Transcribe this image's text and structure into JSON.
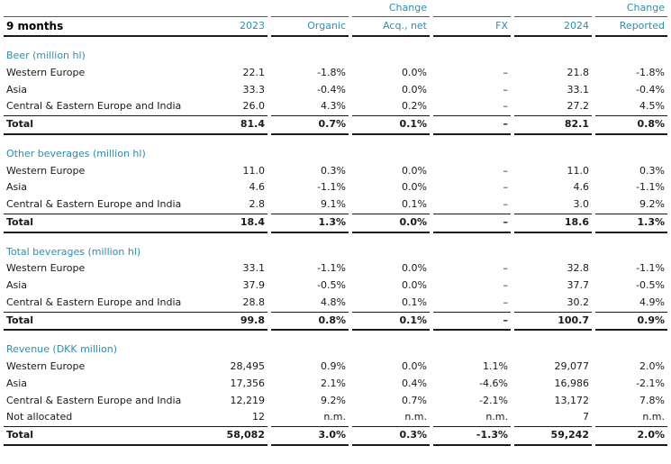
{
  "header": {
    "title": "9 months",
    "change_label": "Change",
    "columns": {
      "y2023": "2023",
      "organic": "Organic",
      "acq": "Acq., net",
      "fx": "FX",
      "y2024": "2024",
      "reported": "Reported"
    }
  },
  "sections": [
    {
      "title": "Beer (million hl)",
      "rows": [
        {
          "label": "Western Europe",
          "y2023": "22.1",
          "organic": "-1.8%",
          "acq": "0.0%",
          "fx": "–",
          "y2024": "21.8",
          "reported": "-1.8%"
        },
        {
          "label": "Asia",
          "y2023": "33.3",
          "organic": "-0.4%",
          "acq": "0.0%",
          "fx": "–",
          "y2024": "33.1",
          "reported": "-0.4%"
        },
        {
          "label": "Central & Eastern Europe and India",
          "y2023": "26.0",
          "organic": "4.3%",
          "acq": "0.2%",
          "fx": "–",
          "y2024": "27.2",
          "reported": "4.5%"
        }
      ],
      "total": {
        "label": "Total",
        "y2023": "81.4",
        "organic": "0.7%",
        "acq": "0.1%",
        "fx": "–",
        "y2024": "82.1",
        "reported": "0.8%"
      }
    },
    {
      "title": "Other beverages (million hl)",
      "rows": [
        {
          "label": "Western Europe",
          "y2023": "11.0",
          "organic": "0.3%",
          "acq": "0.0%",
          "fx": "–",
          "y2024": "11.0",
          "reported": "0.3%"
        },
        {
          "label": "Asia",
          "y2023": "4.6",
          "organic": "-1.1%",
          "acq": "0.0%",
          "fx": "–",
          "y2024": "4.6",
          "reported": "-1.1%"
        },
        {
          "label": "Central & Eastern Europe and India",
          "y2023": "2.8",
          "organic": "9.1%",
          "acq": "0.1%",
          "fx": "–",
          "y2024": "3.0",
          "reported": "9.2%"
        }
      ],
      "total": {
        "label": "Total",
        "y2023": "18.4",
        "organic": "1.3%",
        "acq": "0.0%",
        "fx": "–",
        "y2024": "18.6",
        "reported": "1.3%"
      }
    },
    {
      "title": "Total beverages (million hl)",
      "rows": [
        {
          "label": "Western Europe",
          "y2023": "33.1",
          "organic": "-1.1%",
          "acq": "0.0%",
          "fx": "–",
          "y2024": "32.8",
          "reported": "-1.1%"
        },
        {
          "label": "Asia",
          "y2023": "37.9",
          "organic": "-0.5%",
          "acq": "0.0%",
          "fx": "–",
          "y2024": "37.7",
          "reported": "-0.5%"
        },
        {
          "label": "Central & Eastern Europe and India",
          "y2023": "28.8",
          "organic": "4.8%",
          "acq": "0.1%",
          "fx": "–",
          "y2024": "30.2",
          "reported": "4.9%"
        }
      ],
      "total": {
        "label": "Total",
        "y2023": "99.8",
        "organic": "0.8%",
        "acq": "0.1%",
        "fx": "–",
        "y2024": "100.7",
        "reported": "0.9%"
      }
    },
    {
      "title": "Revenue (DKK million)",
      "rows": [
        {
          "label": "Western Europe",
          "y2023": "28,495",
          "organic": "0.9%",
          "acq": "0.0%",
          "fx": "1.1%",
          "y2024": "29,077",
          "reported": "2.0%"
        },
        {
          "label": "Asia",
          "y2023": "17,356",
          "organic": "2.1%",
          "acq": "0.4%",
          "fx": "-4.6%",
          "y2024": "16,986",
          "reported": "-2.1%"
        },
        {
          "label": "Central & Eastern Europe and India",
          "y2023": "12,219",
          "organic": "9.2%",
          "acq": "0.7%",
          "fx": "-2.1%",
          "y2024": "13,172",
          "reported": "7.8%"
        },
        {
          "label": "Not allocated",
          "y2023": "12",
          "organic": "n.m.",
          "acq": "n.m.",
          "fx": "n.m.",
          "y2024": "7",
          "reported": "n.m."
        }
      ],
      "total": {
        "label": "Total",
        "y2023": "58,082",
        "organic": "3.0%",
        "acq": "0.3%",
        "fx": "-1.3%",
        "y2024": "59,242",
        "reported": "2.0%"
      }
    }
  ]
}
